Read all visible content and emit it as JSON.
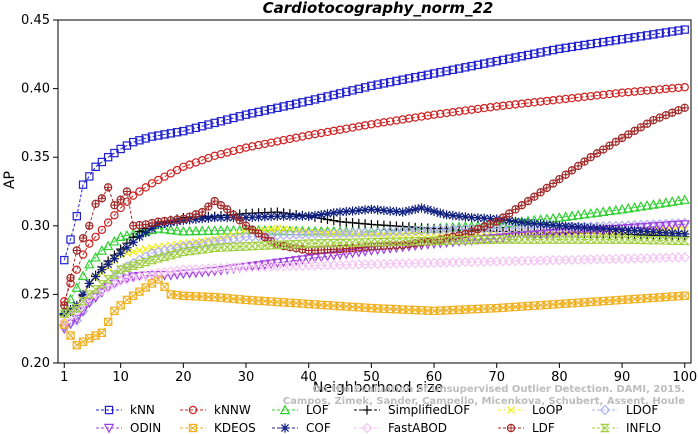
{
  "chart_data": {
    "type": "line",
    "title": "Cardiotocography_norm_22",
    "xlabel": "Neighborhood size",
    "ylabel": "AP",
    "xlim": [
      0,
      101
    ],
    "ylim": [
      0.2,
      0.45
    ],
    "xticks": [
      1,
      10,
      20,
      30,
      40,
      50,
      60,
      70,
      80,
      90,
      100
    ],
    "yticks": [
      0.2,
      0.25,
      0.3,
      0.35,
      0.4,
      0.45
    ],
    "xtick_labels": [
      "1",
      "10",
      "20",
      "30",
      "40",
      "50",
      "60",
      "70",
      "80",
      "90",
      "100"
    ],
    "ytick_labels": [
      "0.20",
      "0.25",
      "0.30",
      "0.35",
      "0.40",
      "0.45"
    ],
    "legend_position": "bottom",
    "watermark": [
      "Campos, Zimek, Sander, Campello, Micenkova, Schubert, Assent, Houle",
      "On the Evaluation of Unsupervised Outlier Detection. DAMI, 2015."
    ],
    "series": [
      {
        "name": "kNN",
        "color": "#2020d0",
        "marker": "square",
        "x": [
          1,
          2,
          3,
          4,
          5,
          6,
          8,
          10,
          12,
          15,
          20,
          25,
          30,
          40,
          50,
          60,
          70,
          80,
          90,
          100
        ],
        "values": [
          0.275,
          0.29,
          0.307,
          0.33,
          0.336,
          0.343,
          0.35,
          0.356,
          0.361,
          0.365,
          0.369,
          0.375,
          0.381,
          0.391,
          0.402,
          0.411,
          0.42,
          0.429,
          0.436,
          0.443
        ]
      },
      {
        "name": "kNNW",
        "color": "#d02020",
        "marker": "circle",
        "x": [
          1,
          2,
          3,
          4,
          5,
          7,
          10,
          12,
          15,
          20,
          25,
          30,
          40,
          50,
          60,
          70,
          80,
          90,
          100
        ],
        "values": [
          0.245,
          0.258,
          0.268,
          0.279,
          0.287,
          0.297,
          0.313,
          0.322,
          0.331,
          0.343,
          0.351,
          0.357,
          0.366,
          0.374,
          0.381,
          0.387,
          0.392,
          0.397,
          0.401
        ]
      },
      {
        "name": "LOF",
        "color": "#30d030",
        "marker": "triangle",
        "x": [
          1,
          3,
          5,
          7,
          10,
          13,
          16,
          20,
          30,
          40,
          50,
          60,
          70,
          80,
          90,
          100
        ],
        "values": [
          0.238,
          0.255,
          0.272,
          0.282,
          0.292,
          0.295,
          0.298,
          0.296,
          0.297,
          0.296,
          0.296,
          0.298,
          0.301,
          0.306,
          0.312,
          0.319
        ]
      },
      {
        "name": "SimplifiedLOF",
        "color": "#000000",
        "marker": "plus",
        "x": [
          1,
          3,
          5,
          7,
          10,
          13,
          16,
          20,
          25,
          30,
          35,
          40,
          45,
          50,
          60,
          70,
          80,
          90,
          100
        ],
        "values": [
          0.235,
          0.24,
          0.258,
          0.27,
          0.283,
          0.296,
          0.302,
          0.306,
          0.307,
          0.309,
          0.31,
          0.307,
          0.303,
          0.301,
          0.298,
          0.296,
          0.295,
          0.294,
          0.292
        ]
      },
      {
        "name": "LoOP",
        "color": "#f0f020",
        "marker": "x",
        "x": [
          1,
          3,
          5,
          8,
          10,
          15,
          20,
          25,
          30,
          35,
          40,
          50,
          60,
          70,
          80,
          90,
          100
        ],
        "values": [
          0.232,
          0.242,
          0.258,
          0.27,
          0.279,
          0.284,
          0.287,
          0.29,
          0.295,
          0.298,
          0.295,
          0.294,
          0.294,
          0.295,
          0.296,
          0.296,
          0.297
        ]
      },
      {
        "name": "LDOF",
        "color": "#b0b0f0",
        "marker": "diamond",
        "x": [
          1,
          3,
          5,
          8,
          10,
          15,
          20,
          30,
          40,
          50,
          60,
          70,
          80,
          90,
          100
        ],
        "values": [
          0.227,
          0.231,
          0.244,
          0.258,
          0.268,
          0.28,
          0.285,
          0.292,
          0.294,
          0.295,
          0.297,
          0.298,
          0.299,
          0.3,
          0.302
        ]
      },
      {
        "name": "ODIN",
        "color": "#a040e0",
        "marker": "triangle-down",
        "x": [
          1,
          3,
          5,
          8,
          10,
          12,
          15,
          18,
          20,
          25,
          30,
          40,
          50,
          60,
          70,
          80,
          90,
          100
        ],
        "values": [
          0.225,
          0.232,
          0.244,
          0.255,
          0.26,
          0.263,
          0.264,
          0.264,
          0.265,
          0.267,
          0.27,
          0.276,
          0.282,
          0.287,
          0.291,
          0.295,
          0.298,
          0.301
        ]
      },
      {
        "name": "KDEOS",
        "color": "#f0b020",
        "marker": "square-x",
        "x": [
          1,
          2,
          3,
          5,
          7,
          9,
          11,
          13,
          15,
          16,
          18,
          20,
          25,
          30,
          40,
          50,
          60,
          70,
          80,
          90,
          100
        ],
        "values": [
          0.228,
          0.22,
          0.213,
          0.218,
          0.222,
          0.238,
          0.246,
          0.252,
          0.258,
          0.261,
          0.25,
          0.249,
          0.248,
          0.246,
          0.243,
          0.24,
          0.238,
          0.24,
          0.243,
          0.246,
          0.249
        ]
      },
      {
        "name": "COF",
        "color": "#102080",
        "marker": "star",
        "x": [
          1,
          3,
          5,
          7,
          10,
          13,
          16,
          20,
          25,
          30,
          35,
          40,
          45,
          50,
          55,
          58,
          62,
          66,
          70,
          75,
          80,
          90,
          100
        ],
        "values": [
          0.236,
          0.242,
          0.258,
          0.268,
          0.28,
          0.292,
          0.301,
          0.304,
          0.306,
          0.306,
          0.307,
          0.307,
          0.31,
          0.312,
          0.31,
          0.313,
          0.308,
          0.306,
          0.305,
          0.302,
          0.3,
          0.297,
          0.294
        ]
      },
      {
        "name": "FastABOD",
        "color": "#f4c4f4",
        "marker": "diamond",
        "x": [
          1,
          3,
          5,
          8,
          10,
          15,
          20,
          30,
          40,
          50,
          60,
          70,
          80,
          90,
          100
        ],
        "values": [
          0.23,
          0.238,
          0.248,
          0.255,
          0.26,
          0.265,
          0.268,
          0.27,
          0.271,
          0.272,
          0.273,
          0.274,
          0.275,
          0.276,
          0.277
        ]
      },
      {
        "name": "LDF",
        "color": "#a02828",
        "marker": "circle-plus",
        "x": [
          1,
          3,
          5,
          6,
          7,
          8,
          9,
          10,
          11,
          12,
          14,
          16,
          20,
          23,
          25,
          27,
          30,
          35,
          40,
          45,
          50,
          55,
          60,
          65,
          70,
          75,
          80,
          85,
          90,
          95,
          100
        ],
        "values": [
          0.242,
          0.282,
          0.3,
          0.316,
          0.32,
          0.328,
          0.315,
          0.319,
          0.325,
          0.3,
          0.301,
          0.303,
          0.305,
          0.31,
          0.318,
          0.312,
          0.3,
          0.286,
          0.282,
          0.283,
          0.285,
          0.286,
          0.289,
          0.294,
          0.303,
          0.318,
          0.334,
          0.35,
          0.364,
          0.377,
          0.386
        ]
      },
      {
        "name": "INFLO",
        "color": "#a0d040",
        "marker": "hourglass",
        "x": [
          1,
          3,
          5,
          8,
          10,
          15,
          20,
          25,
          30,
          40,
          50,
          60,
          70,
          80,
          90,
          100
        ],
        "values": [
          0.236,
          0.24,
          0.25,
          0.261,
          0.268,
          0.275,
          0.281,
          0.284,
          0.285,
          0.287,
          0.288,
          0.289,
          0.29,
          0.29,
          0.29,
          0.289
        ]
      }
    ]
  }
}
